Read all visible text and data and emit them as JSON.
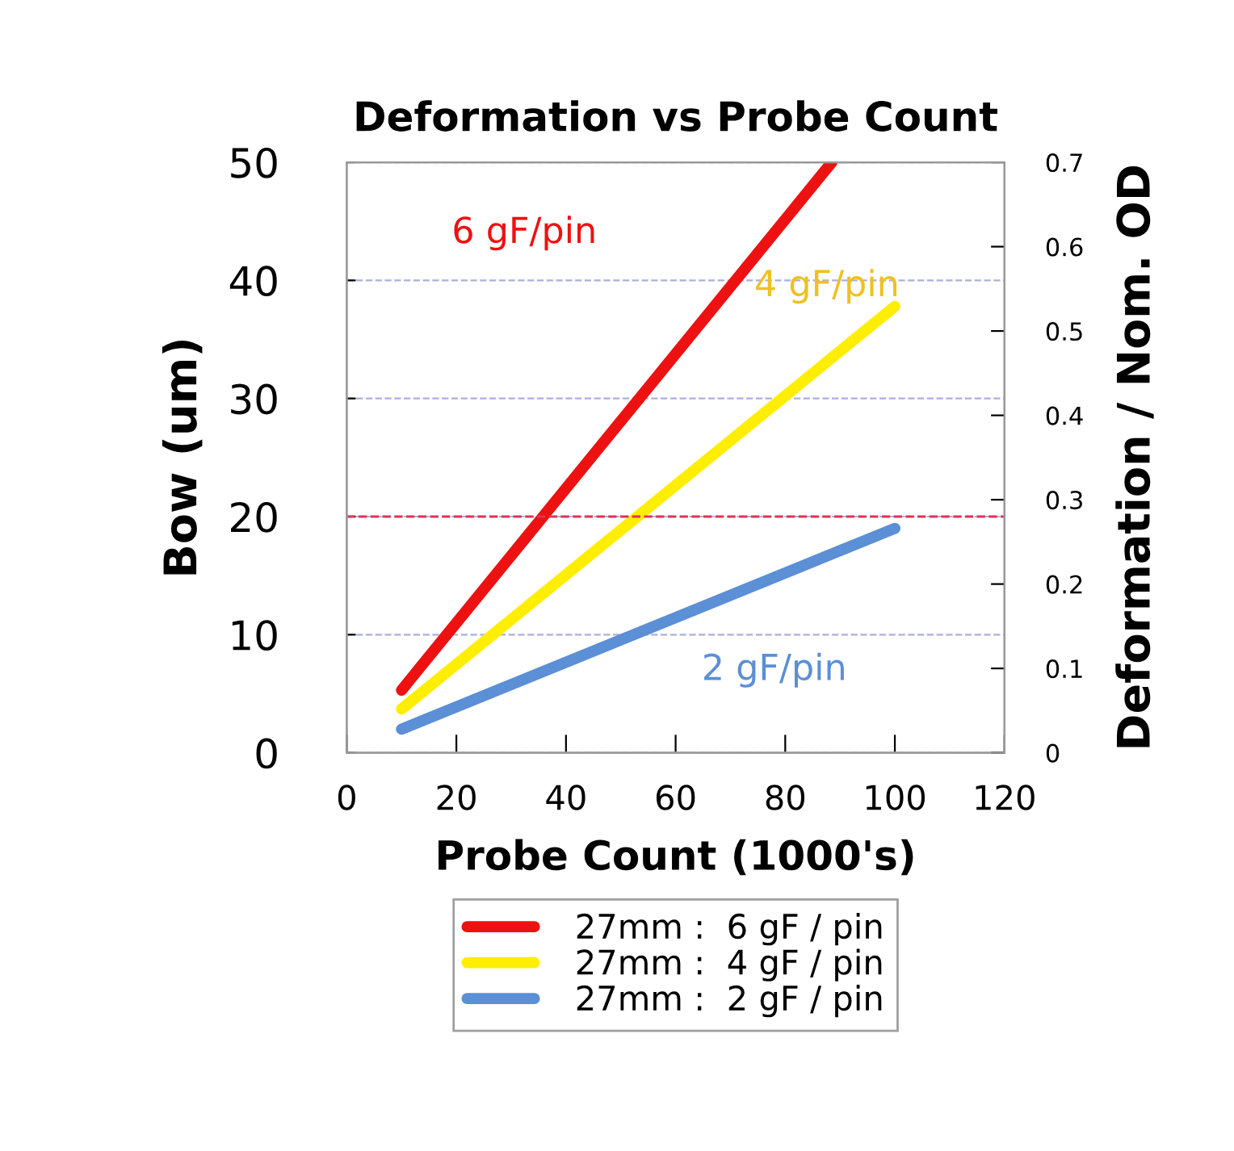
{
  "chart_data": {
    "type": "line",
    "title": "Deformation vs Probe Count",
    "xlabel": "Probe Count (1000's)",
    "ylabel": "Bow (um)",
    "y2label": "Deformation / Nom. OD",
    "series": [
      {
        "name": "27mm :  6 gF / pin",
        "color": "#ee1111",
        "x": [
          10,
          88.5
        ],
        "values": [
          5.3,
          50
        ]
      },
      {
        "name": "27mm :  4 gF / pin",
        "color": "#ffee00",
        "x": [
          10,
          100
        ],
        "values": [
          3.7,
          37.8
        ]
      },
      {
        "name": "27mm :  2 gF / pin",
        "color": "#5b8fd6",
        "x": [
          10,
          100
        ],
        "values": [
          2,
          19
        ]
      }
    ],
    "annotations": [
      "6 gF/pin",
      "4 gF/pin",
      "2 gF/pin"
    ],
    "xlim": [
      0,
      120
    ],
    "xticks": [
      0,
      20,
      40,
      60,
      80,
      100,
      120
    ],
    "ylim": [
      0,
      50
    ],
    "yticks": [
      0,
      10,
      20,
      30,
      40,
      50
    ],
    "y2lim": [
      0,
      0.7
    ],
    "y2ticks": [
      0,
      0.1,
      0.2,
      0.3,
      0.4,
      0.5,
      0.6,
      0.7
    ],
    "ref_lines": [
      {
        "axis": "y",
        "value": 20,
        "color": "#dd3355",
        "line_style": "dashed"
      }
    ],
    "grid": "y",
    "legend": "bottom",
    "marker": "none",
    "line_style": "solid"
  }
}
